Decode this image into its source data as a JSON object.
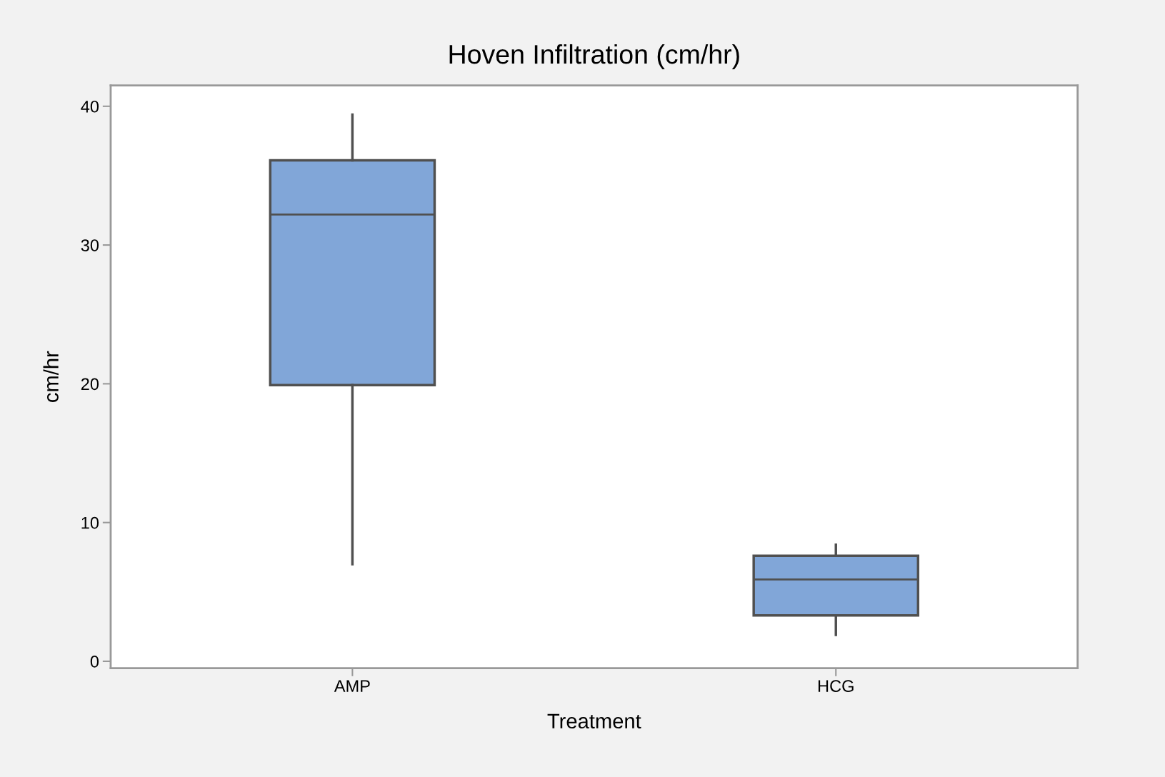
{
  "chart_data": {
    "type": "box",
    "title": "Hoven Infiltration (cm/hr)",
    "xlabel": "Treatment",
    "ylabel": "cm/hr",
    "categories": [
      "AMP",
      "HCG"
    ],
    "boxes": [
      {
        "low": 7.0,
        "q1": 19.9,
        "median": 32.2,
        "q3": 36.1,
        "high": 39.4
      },
      {
        "low": 1.9,
        "q1": 3.3,
        "median": 5.9,
        "q3": 7.6,
        "high": 8.4
      }
    ],
    "color": "#81a6d8",
    "ylim": [
      -0.5,
      41.5
    ],
    "yticks": [
      0,
      10,
      20,
      30,
      40
    ],
    "grid": false
  }
}
